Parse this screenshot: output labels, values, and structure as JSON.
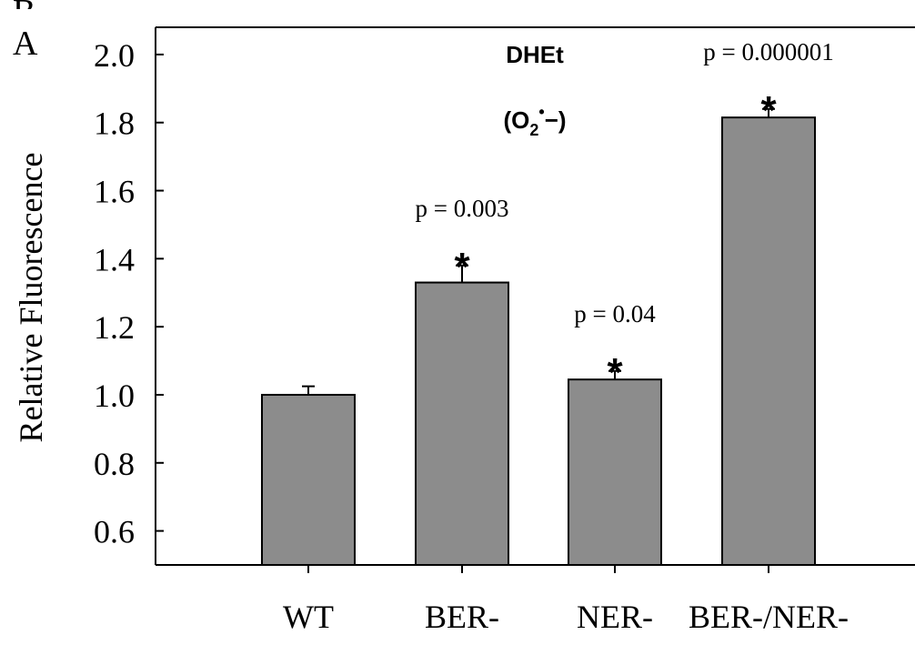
{
  "panel_label": "A",
  "panel_label_partial": "B",
  "chart_data": {
    "type": "bar",
    "title": "DHEt",
    "subtitle": {
      "pre": "(O",
      "sub": "2",
      "sup": "•",
      "post": "−)"
    },
    "ylabel": "Relative Fluorescence",
    "xlabel": "",
    "ylim": [
      0.5,
      2.08
    ],
    "yticks": [
      0.6,
      0.8,
      1.0,
      1.2,
      1.4,
      1.6,
      1.8,
      2.0
    ],
    "ytick_labels": [
      "0.6",
      "0.8",
      "1.0",
      "1.2",
      "1.4",
      "1.6",
      "1.8",
      "2.0"
    ],
    "categories": [
      "WT",
      "BER-",
      "NER-",
      "BER-/NER-"
    ],
    "values": [
      1.0,
      1.33,
      1.045,
      1.815
    ],
    "errors": [
      0.025,
      0.05,
      0.025,
      0.025
    ],
    "annotations": [
      "",
      "p = 0.003",
      "p = 0.04",
      "p = 0.000001"
    ],
    "significance": [
      "",
      "*",
      "*",
      "*"
    ],
    "colors": {
      "bar": "#8c8c8c",
      "edge": "#000000"
    },
    "grid": false
  }
}
